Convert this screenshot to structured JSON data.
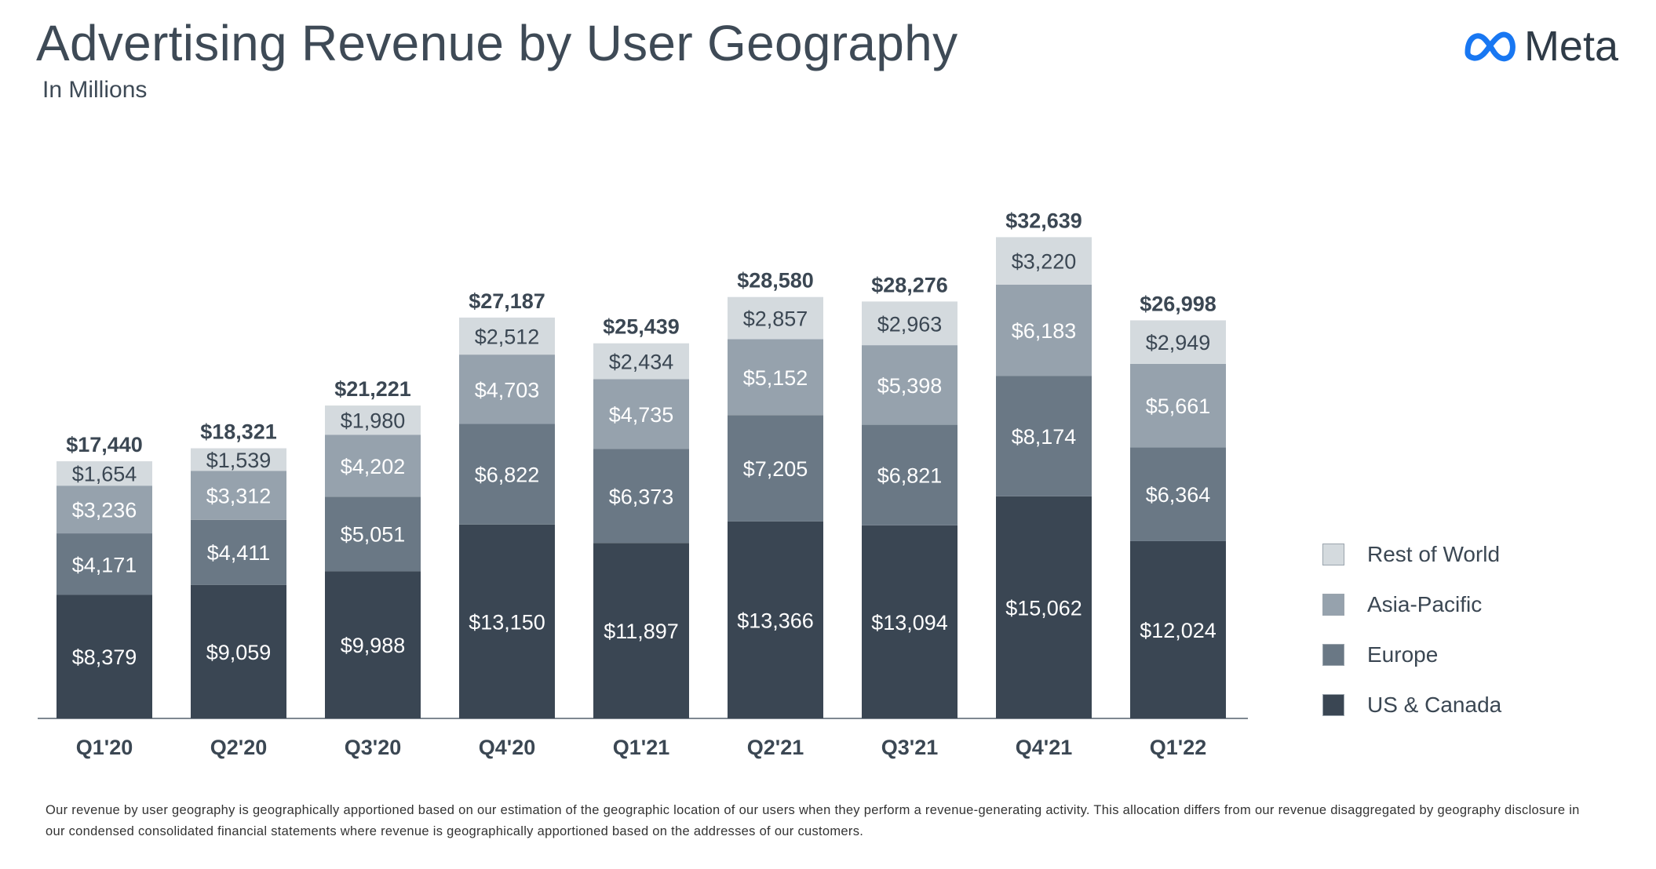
{
  "title": "Advertising Revenue by User Geography",
  "subtitle": "In Millions",
  "brand": {
    "name": "Meta",
    "logo_icon": "meta-infinity-icon",
    "color": "#1877f2"
  },
  "footnote": "Our revenue by user geography is geographically apportioned based on our estimation of the geographic location of our users when they perform a revenue-generating activity. This allocation differs from our revenue disaggregated by geography disclosure in our condensed consolidated financial statements where revenue is geographically apportioned based on the addresses of our customers.",
  "legend": [
    {
      "name": "Rest of World",
      "color": "#d4dade"
    },
    {
      "name": "Asia-Pacific",
      "color": "#96a2ad"
    },
    {
      "name": "Europe",
      "color": "#6a7885"
    },
    {
      "name": "US & Canada",
      "color": "#3a4653"
    }
  ],
  "chart_data": {
    "type": "bar",
    "stacked": true,
    "title": "Advertising Revenue by User Geography",
    "subtitle": "In Millions",
    "xlabel": "",
    "ylabel": "",
    "ylim": [
      0,
      35000
    ],
    "grid": false,
    "legend_position": "right",
    "categories": [
      "Q1'20",
      "Q2'20",
      "Q3'20",
      "Q4'20",
      "Q1'21",
      "Q2'21",
      "Q3'21",
      "Q4'21",
      "Q1'22"
    ],
    "series": [
      {
        "name": "US & Canada",
        "color": "#3a4653",
        "values": [
          8379,
          9059,
          9988,
          13150,
          11897,
          13366,
          13094,
          15062,
          12024
        ],
        "labels": [
          "$8,379",
          "$9,059",
          "$9,988",
          "$13,150",
          "$11,897",
          "$13,366",
          "$13,094",
          "$15,062",
          "$12,024"
        ]
      },
      {
        "name": "Europe",
        "color": "#6a7885",
        "values": [
          4171,
          4411,
          5051,
          6822,
          6373,
          7205,
          6821,
          8174,
          6364
        ],
        "labels": [
          "$4,171",
          "$4,411",
          "$5,051",
          "$6,822",
          "$6,373",
          "$7,205",
          "$6,821",
          "$8,174",
          "$6,364"
        ]
      },
      {
        "name": "Asia-Pacific",
        "color": "#96a2ad",
        "values": [
          3236,
          3312,
          4202,
          4703,
          4735,
          5152,
          5398,
          6183,
          5661
        ],
        "labels": [
          "$3,236",
          "$3,312",
          "$4,202",
          "$4,703",
          "$4,735",
          "$5,152",
          "$5,398",
          "$6,183",
          "$5,661"
        ]
      },
      {
        "name": "Rest of World",
        "color": "#d4dade",
        "values": [
          1654,
          1539,
          1980,
          2512,
          2434,
          2857,
          2963,
          3220,
          2949
        ],
        "labels": [
          "$1,654",
          "$1,539",
          "$1,980",
          "$2,512",
          "$2,434",
          "$2,857",
          "$2,963",
          "$3,220",
          "$2,949"
        ]
      }
    ],
    "totals": [
      17440,
      18321,
      21221,
      27187,
      25439,
      28580,
      28276,
      32639,
      26998
    ],
    "total_labels": [
      "$17,440",
      "$18,321",
      "$21,221",
      "$27,187",
      "$25,439",
      "$28,580",
      "$28,276",
      "$32,639",
      "$26,998"
    ]
  }
}
